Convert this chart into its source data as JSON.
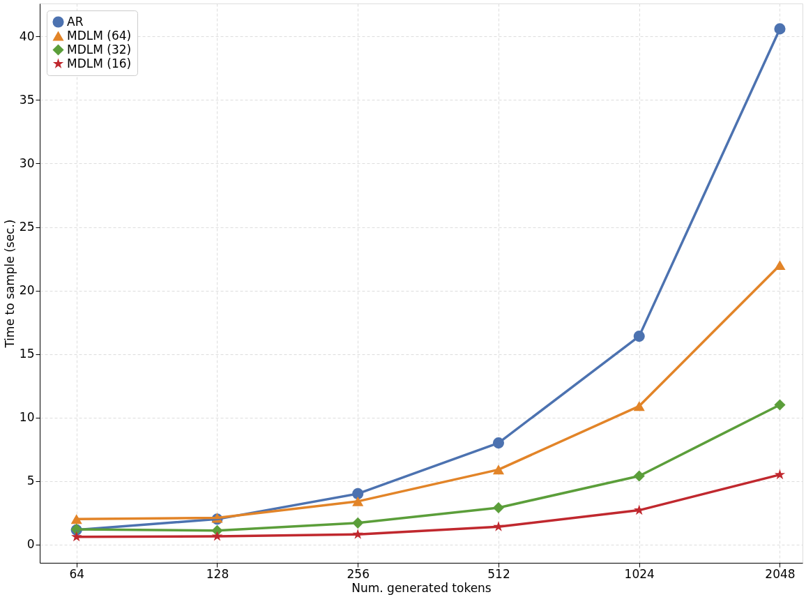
{
  "chart_data": {
    "type": "line",
    "xlabel": "Num. generated tokens",
    "ylabel": "Time to sample (sec.)",
    "log": "x",
    "x": [
      64,
      128,
      256,
      512,
      1024,
      2048
    ],
    "xlim": [
      53.4,
      2290
    ],
    "xticks": [
      64,
      128,
      256,
      512,
      1024,
      2048
    ],
    "ylim": [
      -1.44,
      42.6
    ],
    "yticks": [
      0,
      5,
      10,
      15,
      20,
      25,
      30,
      35,
      40
    ],
    "grid": true,
    "legend": "top left",
    "line_style": "solid",
    "series": [
      {
        "name": "AR",
        "color": "#4c72b0",
        "marker": "circle",
        "values": [
          1.15,
          2.0,
          4.0,
          8.0,
          16.4,
          40.6
        ]
      },
      {
        "name": "MDLM (64)",
        "color": "#e28428",
        "marker": "triangle",
        "values": [
          2.0,
          2.1,
          3.4,
          5.9,
          10.9,
          22.0
        ]
      },
      {
        "name": "MDLM (32)",
        "color": "#5b9e3a",
        "marker": "diamond",
        "values": [
          1.2,
          1.1,
          1.7,
          2.9,
          5.4,
          11.0
        ]
      },
      {
        "name": "MDLM (16)",
        "color": "#c0282e",
        "marker": "star",
        "values": [
          0.6,
          0.65,
          0.8,
          1.4,
          2.7,
          5.5
        ]
      }
    ]
  }
}
